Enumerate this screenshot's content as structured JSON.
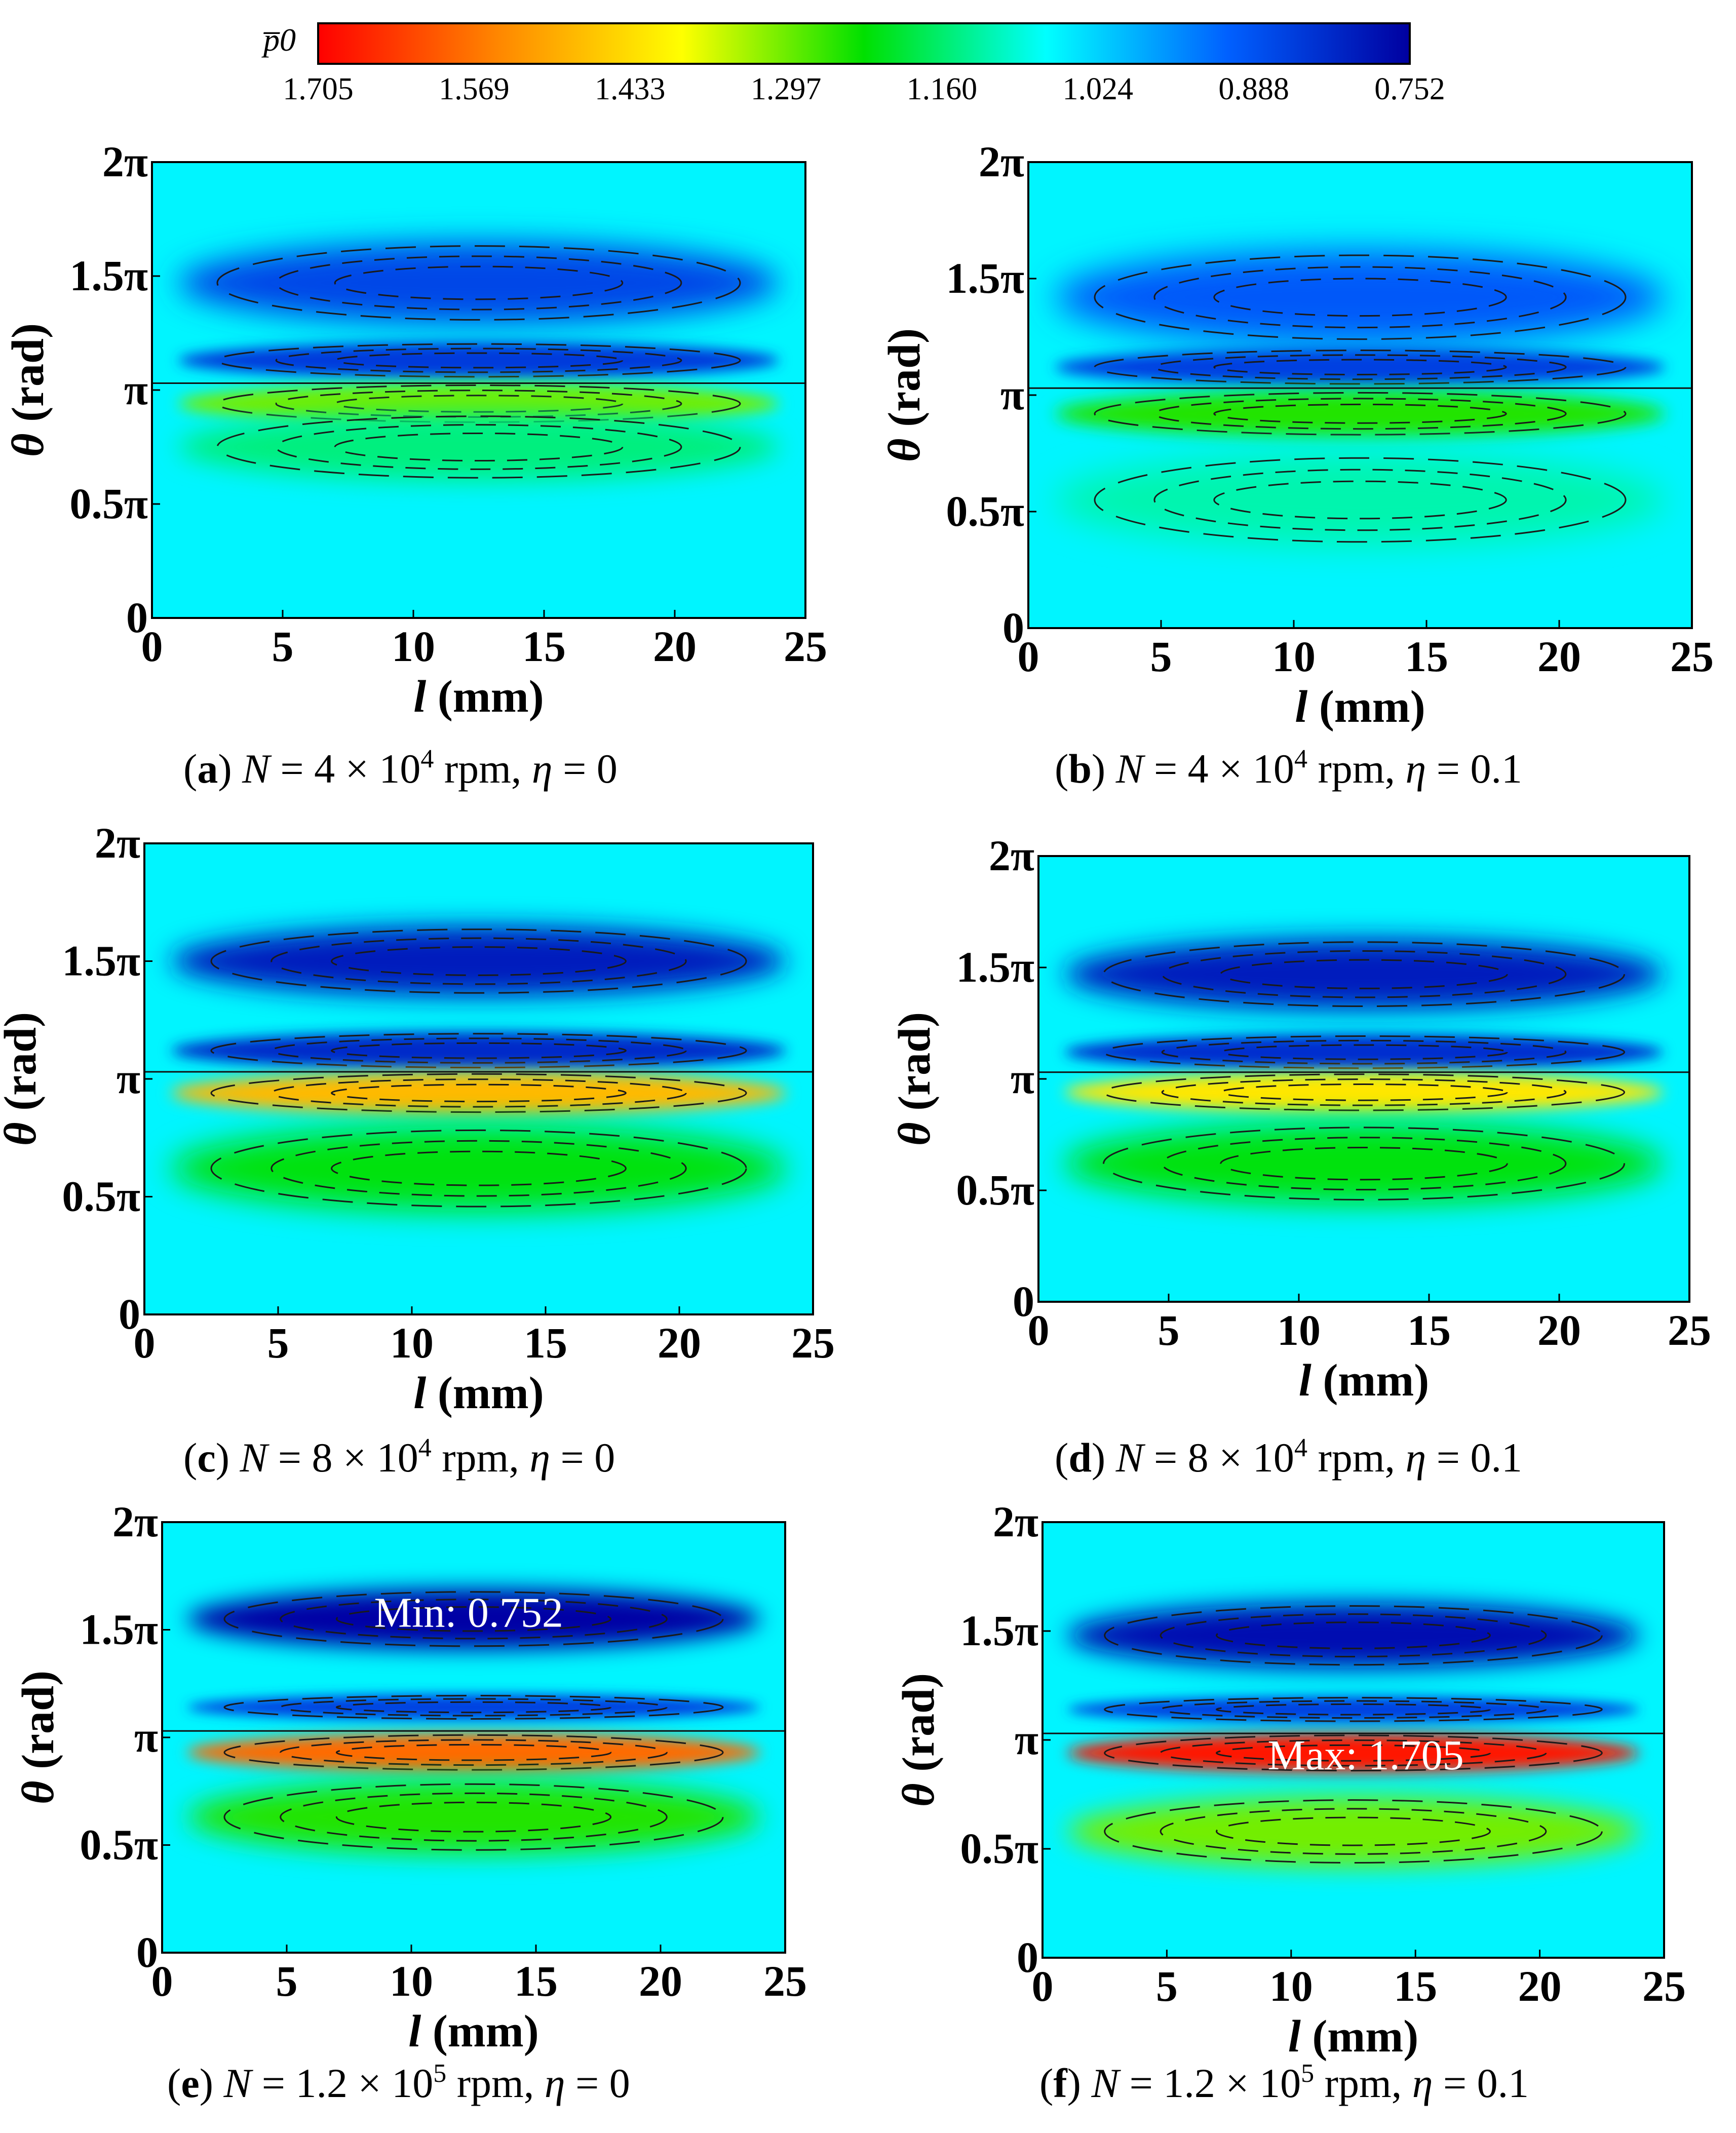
{
  "chart_data": {
    "type": "heatmap",
    "colorbar": {
      "symbol": "p0",
      "symbol_display": "p̅0",
      "ticks": [
        "1.705",
        "1.569",
        "1.433",
        "1.297",
        "1.160",
        "1.024",
        "0.888",
        "0.752"
      ],
      "min": 0.752,
      "max": 1.705,
      "colors": [
        "#ff0000",
        "#ff8800",
        "#ffff00",
        "#00e000",
        "#00ffff",
        "#0060ff",
        "#0000a0"
      ]
    },
    "panels": [
      {
        "id": "a",
        "caption": {
          "label": "a",
          "N_text": " = 4 × 10",
          "exp": "4",
          "rpm_text": " rpm, ",
          "eta_text": " = 0"
        },
        "xlabel": "l (mm)",
        "ylabel": "θ (rad)",
        "xticks": [
          "0",
          "5",
          "10",
          "15",
          "20",
          "25"
        ],
        "yticks": [
          "0",
          "0.5π",
          "π",
          "1.5π",
          "2π"
        ],
        "xlim": [
          0,
          25
        ],
        "ylim_pi": [
          0,
          2
        ],
        "bands": [
          {
            "theta_pi": 1.47,
            "value": 0.87,
            "spread_pi": 0.18
          },
          {
            "theta_pi": 1.13,
            "value": 0.85,
            "spread_pi": 0.08
          },
          {
            "theta_pi": 0.94,
            "value": 1.3,
            "spread_pi": 0.09
          },
          {
            "theta_pi": 0.75,
            "value": 1.15,
            "spread_pi": 0.15
          }
        ],
        "annotation": ""
      },
      {
        "id": "b",
        "caption": {
          "label": "b",
          "N_text": " = 4 × 10",
          "exp": "4",
          "rpm_text": " rpm, ",
          "eta_text": " = 0.1"
        },
        "xlabel": "l (mm)",
        "ylabel": "θ (rad)",
        "xticks": [
          "0",
          "5",
          "10",
          "15",
          "20",
          "25"
        ],
        "yticks": [
          "0",
          "0.5π",
          "π",
          "1.5π",
          "2π"
        ],
        "xlim": [
          0,
          25
        ],
        "ylim_pi": [
          0,
          2
        ],
        "bands": [
          {
            "theta_pi": 1.42,
            "value": 0.9,
            "spread_pi": 0.2
          },
          {
            "theta_pi": 1.12,
            "value": 0.86,
            "spread_pi": 0.08
          },
          {
            "theta_pi": 0.92,
            "value": 1.25,
            "spread_pi": 0.1
          },
          {
            "theta_pi": 0.55,
            "value": 1.12,
            "spread_pi": 0.2
          }
        ],
        "annotation": ""
      },
      {
        "id": "c",
        "caption": {
          "label": "c",
          "N_text": " = 8 × 10",
          "exp": "4",
          "rpm_text": " rpm, ",
          "eta_text": " = 0"
        },
        "xlabel": "l (mm)",
        "ylabel": "θ (rad)",
        "xticks": [
          "0",
          "5",
          "10",
          "15",
          "20",
          "25"
        ],
        "yticks": [
          "0",
          "0.5π",
          "π",
          "1.5π",
          "2π"
        ],
        "xlim": [
          0,
          25
        ],
        "ylim_pi": [
          0,
          2
        ],
        "bands": [
          {
            "theta_pi": 1.5,
            "value": 0.8,
            "spread_pi": 0.15
          },
          {
            "theta_pi": 1.12,
            "value": 0.82,
            "spread_pi": 0.08
          },
          {
            "theta_pi": 0.94,
            "value": 1.48,
            "spread_pi": 0.09
          },
          {
            "theta_pi": 0.62,
            "value": 1.22,
            "spread_pi": 0.18
          }
        ],
        "annotation": ""
      },
      {
        "id": "d",
        "caption": {
          "label": "d",
          "N_text": " = 8 × 10",
          "exp": "4",
          "rpm_text": " rpm, ",
          "eta_text": " = 0.1"
        },
        "xlabel": "l (mm)",
        "ylabel": "θ (rad)",
        "xticks": [
          "0",
          "5",
          "10",
          "15",
          "20",
          "25"
        ],
        "yticks": [
          "0",
          "0.5π",
          "π",
          "1.5π",
          "2π"
        ],
        "xlim": [
          0,
          25
        ],
        "ylim_pi": [
          0,
          2
        ],
        "bands": [
          {
            "theta_pi": 1.47,
            "value": 0.8,
            "spread_pi": 0.16
          },
          {
            "theta_pi": 1.12,
            "value": 0.83,
            "spread_pi": 0.08
          },
          {
            "theta_pi": 0.94,
            "value": 1.42,
            "spread_pi": 0.09
          },
          {
            "theta_pi": 0.62,
            "value": 1.22,
            "spread_pi": 0.18
          }
        ],
        "annotation": ""
      },
      {
        "id": "e",
        "caption": {
          "label": "e",
          "N_text": " = 1.2 × 10",
          "exp": "5",
          "rpm_text": " rpm, ",
          "eta_text": " = 0"
        },
        "xlabel": "l (mm)",
        "ylabel": "θ (rad)",
        "xticks": [
          "0",
          "5",
          "10",
          "15",
          "20",
          "25"
        ],
        "yticks": [
          "0",
          "0.5π",
          "π",
          "1.5π",
          "2π"
        ],
        "xlim": [
          0,
          25
        ],
        "ylim_pi": [
          0,
          2
        ],
        "bands": [
          {
            "theta_pi": 1.55,
            "value": 0.76,
            "spread_pi": 0.14
          },
          {
            "theta_pi": 1.14,
            "value": 0.86,
            "spread_pi": 0.06
          },
          {
            "theta_pi": 0.93,
            "value": 1.58,
            "spread_pi": 0.09
          },
          {
            "theta_pi": 0.63,
            "value": 1.25,
            "spread_pi": 0.17
          }
        ],
        "annotation": "Min: 0.752",
        "annotation_pos": {
          "l": 12.3,
          "theta_pi": 1.58
        }
      },
      {
        "id": "f",
        "caption": {
          "label": "f",
          "N_text": " = 1.2 × 10",
          "exp": "5",
          "rpm_text": " rpm, ",
          "eta_text": " = 0.1"
        },
        "xlabel": "l (mm)",
        "ylabel": "θ (rad)",
        "xticks": [
          "0",
          "5",
          "10",
          "15",
          "20",
          "25"
        ],
        "yticks": [
          "0",
          "0.5π",
          "π",
          "1.5π",
          "2π"
        ],
        "xlim": [
          0,
          25
        ],
        "ylim_pi": [
          0,
          2
        ],
        "bands": [
          {
            "theta_pi": 1.48,
            "value": 0.78,
            "spread_pi": 0.15
          },
          {
            "theta_pi": 1.14,
            "value": 0.86,
            "spread_pi": 0.06
          },
          {
            "theta_pi": 0.94,
            "value": 1.68,
            "spread_pi": 0.09
          },
          {
            "theta_pi": 0.58,
            "value": 1.3,
            "spread_pi": 0.16
          }
        ],
        "annotation": "Max: 1.705",
        "annotation_pos": {
          "l": 13.0,
          "theta_pi": 0.93
        }
      }
    ]
  }
}
